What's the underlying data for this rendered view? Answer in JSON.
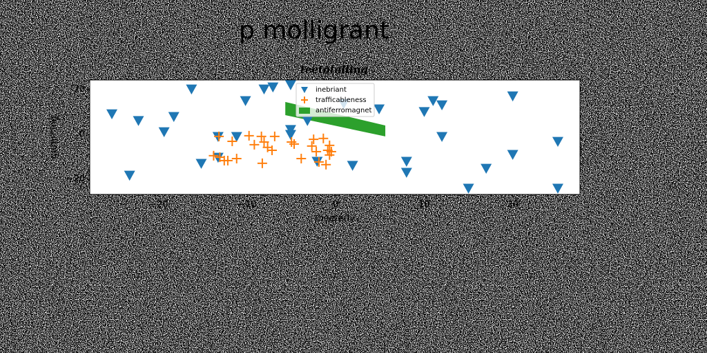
{
  "chart_data": {
    "type": "scatter",
    "title": "p molligrant",
    "subtitle": "teetotalling",
    "xlabel": "meeterly",
    "ylabel": "gumming",
    "xlim": [
      -27.8,
      27.6
    ],
    "ylim": [
      -26.8,
      24.3
    ],
    "xticks": [
      {
        "value": -20,
        "label": "−20"
      },
      {
        "value": -10,
        "label": "−10"
      },
      0,
      10,
      20
    ],
    "yticks": [
      {
        "value": -20,
        "label": "−20"
      },
      0,
      20
    ],
    "legend": "upper center",
    "series": [
      {
        "name": "inebriant",
        "color": "#1f77b4",
        "marker": "triangle_down",
        "x": [
          -25.3,
          -23.3,
          -22.3,
          -19.4,
          -18.3,
          -16.3,
          -15.2,
          -13.3,
          -13.3,
          -11.2,
          -10.2,
          -8.1,
          -7.1,
          -5.1,
          -5.1,
          -5.1,
          -3.2,
          -2.1,
          0.9,
          1.9,
          4.9,
          8.0,
          8.0,
          10.0,
          11.0,
          12.0,
          12.0,
          15.0,
          17.0,
          20.0,
          20.0,
          25.1,
          25.1
        ],
        "values": [
          9.2,
          -18.2,
          6.2,
          1.2,
          8.0,
          20.3,
          -12.9,
          -0.9,
          -10.2,
          -0.9,
          15.1,
          20.3,
          21.2,
          22.2,
          2.2,
          0,
          6.2,
          -12,
          13.8,
          -13.8,
          11.4,
          -12,
          -16.9,
          10.2,
          15.1,
          13.2,
          -0.9,
          -24,
          -15.1,
          17.2,
          -8.9,
          -3.1,
          -24
        ]
      },
      {
        "name": "trafficableness",
        "color": "#ff7f0e",
        "marker": "plus",
        "x": [
          -13.8,
          -13.2,
          -13.1,
          -12.6,
          -12.2,
          -11.7,
          -11.2,
          -9.8,
          -9.2,
          -8.4,
          -8.3,
          -8.1,
          -7.7,
          -7.2,
          -6.9,
          -5,
          -4.7,
          -3.9,
          -2.7,
          -2.5,
          -2.2,
          -1.9,
          -1.4,
          -1.1,
          -0.9,
          -0.7,
          -0.7,
          -0.5
        ],
        "values": [
          -9.5,
          -0.9,
          -10.2,
          -11.7,
          -11.7,
          -3.1,
          -10.8,
          -0.6,
          -4.6,
          -0.9,
          -12.9,
          -3.4,
          -5.8,
          -7.1,
          -0.9,
          -3.4,
          -4.3,
          -10.8,
          -5.2,
          -2.2,
          -7.7,
          -12.3,
          -1.8,
          -13.5,
          -7.1,
          -4.9,
          -9.2,
          -7.7
        ]
      },
      {
        "name": "antiferromagnet",
        "color": "#2ca02c",
        "marker": "area",
        "x": [
          -5.7,
          5.6
        ],
        "y_upper": [
          14.5,
          4
        ],
        "y_lower": [
          8.6,
          -0.9
        ]
      }
    ]
  }
}
